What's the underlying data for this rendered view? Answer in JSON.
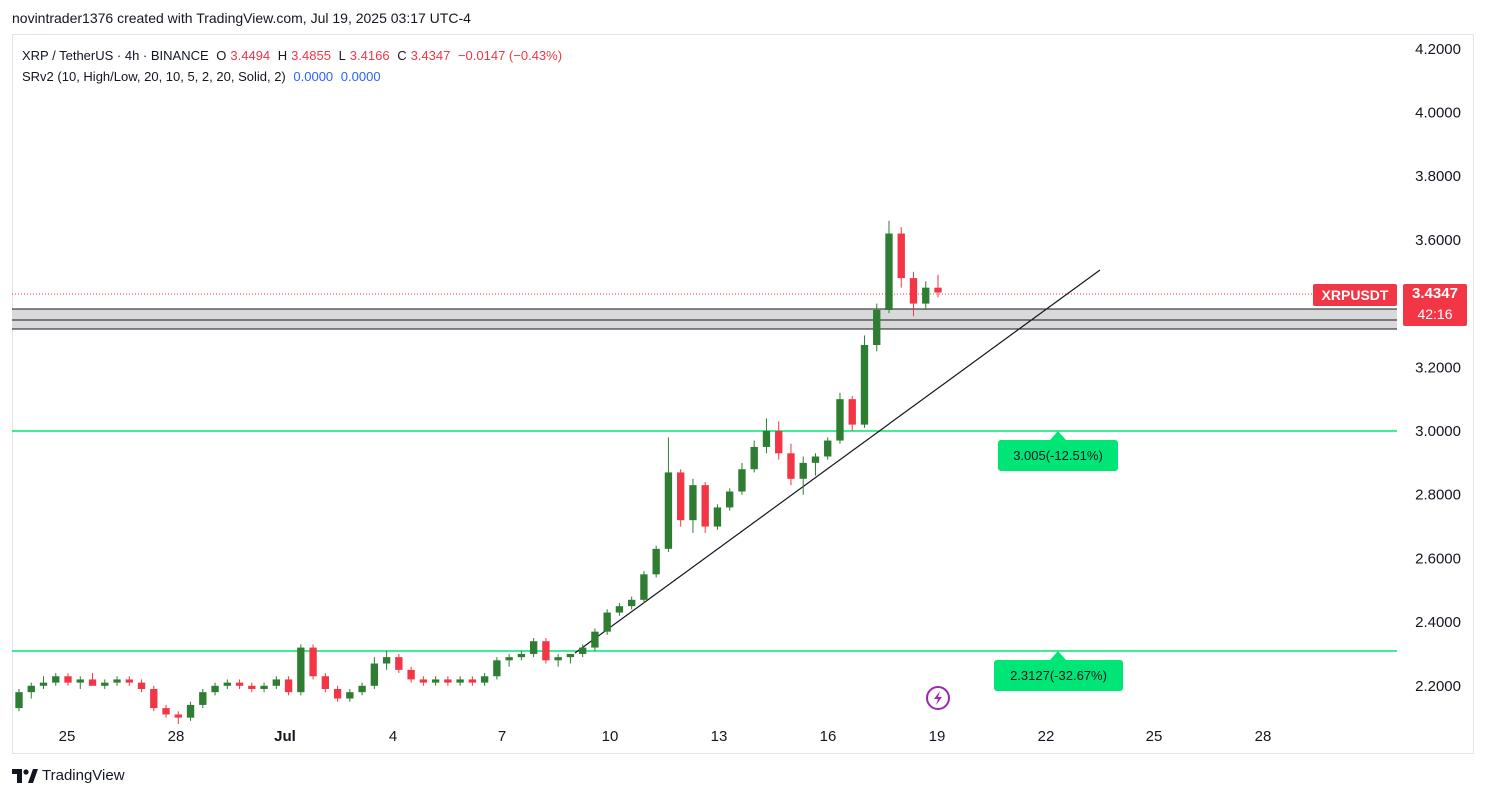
{
  "header": {
    "attribution": "novintrader1376 created with TradingView.com, Jul 19, 2025 03:17 UTC-4"
  },
  "legend": {
    "symbol": "XRP / TetherUS · 4h · BINANCE",
    "open_label": "O",
    "open": "3.4494",
    "high_label": "H",
    "high": "3.4855",
    "low_label": "L",
    "low": "3.4166",
    "close_label": "C",
    "close": "3.4347",
    "change": "−0.0147 (−0.43%)",
    "indicator": "SRv2 (10, High/Low, 20, 10, 5, 2, 20, Solid, 2)",
    "indicator_value_1": "0.0000",
    "indicator_value_2": "0.0000"
  },
  "price_badge": {
    "symbol": "XRPUSDT",
    "price": "3.4347",
    "countdown": "42:16"
  },
  "targets": [
    {
      "label": "3.005(-12.51%)",
      "price": 3.005
    },
    {
      "label": "2.3127(-32.67%)",
      "price": 2.3127
    }
  ],
  "footer": {
    "brand": "TradingView"
  },
  "colors": {
    "up": "#26a69a",
    "up_body": "#2e7d32",
    "down": "#f23645",
    "level": "#00e676",
    "target_bg": "#00e676",
    "zone": "#d9d9d9",
    "badge": "#f23645"
  },
  "chart_data": {
    "type": "candlestick",
    "y_ticks": [
      "4.2000",
      "4.0000",
      "3.8000",
      "3.6000",
      "3.2000",
      "3.0000",
      "2.8000",
      "2.6000",
      "2.4000",
      "2.2000"
    ],
    "x_ticks": [
      "25",
      "28",
      "Jul",
      "4",
      "7",
      "10",
      "13",
      "16",
      "19",
      "22",
      "25",
      "28"
    ],
    "ylim": [
      2.1,
      4.25
    ],
    "horizontal_levels": [
      3.005,
      2.3127
    ],
    "zone": [
      3.32,
      3.38
    ],
    "last_price": 3.4347,
    "trendline": {
      "from": [
        "Jul 9",
        2.3
      ],
      "to": [
        "Jul 23",
        3.52
      ]
    },
    "candles": [
      [
        2.13,
        2.19,
        2.12,
        2.18
      ],
      [
        2.18,
        2.21,
        2.16,
        2.2
      ],
      [
        2.2,
        2.23,
        2.19,
        2.21
      ],
      [
        2.21,
        2.24,
        2.2,
        2.23
      ],
      [
        2.23,
        2.24,
        2.2,
        2.21
      ],
      [
        2.21,
        2.23,
        2.19,
        2.22
      ],
      [
        2.22,
        2.24,
        2.21,
        2.2
      ],
      [
        2.2,
        2.22,
        2.19,
        2.21
      ],
      [
        2.21,
        2.23,
        2.2,
        2.22
      ],
      [
        2.22,
        2.23,
        2.2,
        2.21
      ],
      [
        2.21,
        2.22,
        2.18,
        2.19
      ],
      [
        2.19,
        2.2,
        2.12,
        2.13
      ],
      [
        2.13,
        2.14,
        2.1,
        2.11
      ],
      [
        2.11,
        2.12,
        2.08,
        2.1
      ],
      [
        2.1,
        2.15,
        2.09,
        2.14
      ],
      [
        2.14,
        2.19,
        2.13,
        2.18
      ],
      [
        2.18,
        2.21,
        2.17,
        2.2
      ],
      [
        2.2,
        2.22,
        2.19,
        2.21
      ],
      [
        2.21,
        2.22,
        2.19,
        2.2
      ],
      [
        2.2,
        2.21,
        2.18,
        2.19
      ],
      [
        2.19,
        2.21,
        2.18,
        2.2
      ],
      [
        2.2,
        2.23,
        2.19,
        2.22
      ],
      [
        2.22,
        2.23,
        2.17,
        2.18
      ],
      [
        2.18,
        2.33,
        2.17,
        2.32
      ],
      [
        2.32,
        2.33,
        2.22,
        2.23
      ],
      [
        2.23,
        2.24,
        2.18,
        2.19
      ],
      [
        2.19,
        2.2,
        2.15,
        2.16
      ],
      [
        2.16,
        2.19,
        2.15,
        2.18
      ],
      [
        2.18,
        2.21,
        2.17,
        2.2
      ],
      [
        2.2,
        2.29,
        2.19,
        2.27
      ],
      [
        2.27,
        2.31,
        2.25,
        2.29
      ],
      [
        2.29,
        2.3,
        2.24,
        2.25
      ],
      [
        2.25,
        2.26,
        2.21,
        2.22
      ],
      [
        2.22,
        2.23,
        2.2,
        2.21
      ],
      [
        2.21,
        2.23,
        2.2,
        2.22
      ],
      [
        2.22,
        2.23,
        2.2,
        2.21
      ],
      [
        2.21,
        2.23,
        2.2,
        2.22
      ],
      [
        2.22,
        2.23,
        2.2,
        2.21
      ],
      [
        2.21,
        2.24,
        2.2,
        2.23
      ],
      [
        2.23,
        2.29,
        2.22,
        2.28
      ],
      [
        2.28,
        2.3,
        2.26,
        2.29
      ],
      [
        2.29,
        2.31,
        2.28,
        2.3
      ],
      [
        2.3,
        2.35,
        2.29,
        2.34
      ],
      [
        2.34,
        2.35,
        2.27,
        2.28
      ],
      [
        2.28,
        2.3,
        2.26,
        2.29
      ],
      [
        2.29,
        2.3,
        2.27,
        2.3
      ],
      [
        2.3,
        2.33,
        2.29,
        2.32
      ],
      [
        2.32,
        2.38,
        2.31,
        2.37
      ],
      [
        2.37,
        2.44,
        2.36,
        2.43
      ],
      [
        2.43,
        2.46,
        2.42,
        2.45
      ],
      [
        2.45,
        2.48,
        2.44,
        2.47
      ],
      [
        2.47,
        2.56,
        2.46,
        2.55
      ],
      [
        2.55,
        2.64,
        2.54,
        2.63
      ],
      [
        2.63,
        2.98,
        2.62,
        2.87
      ],
      [
        2.87,
        2.88,
        2.7,
        2.72
      ],
      [
        2.72,
        2.85,
        2.68,
        2.83
      ],
      [
        2.83,
        2.84,
        2.68,
        2.7
      ],
      [
        2.7,
        2.77,
        2.69,
        2.76
      ],
      [
        2.76,
        2.82,
        2.75,
        2.81
      ],
      [
        2.81,
        2.9,
        2.8,
        2.88
      ],
      [
        2.88,
        2.97,
        2.87,
        2.95
      ],
      [
        2.95,
        3.04,
        2.93,
        3.0
      ],
      [
        3.0,
        3.03,
        2.91,
        2.93
      ],
      [
        2.93,
        2.96,
        2.83,
        2.85
      ],
      [
        2.85,
        2.92,
        2.8,
        2.9
      ],
      [
        2.9,
        2.93,
        2.86,
        2.92
      ],
      [
        2.92,
        2.98,
        2.91,
        2.97
      ],
      [
        2.97,
        3.12,
        2.96,
        3.1
      ],
      [
        3.1,
        3.11,
        3.0,
        3.02
      ],
      [
        3.02,
        3.3,
        3.01,
        3.27
      ],
      [
        3.27,
        3.4,
        3.25,
        3.38
      ],
      [
        3.38,
        3.66,
        3.37,
        3.62
      ],
      [
        3.62,
        3.64,
        3.45,
        3.48
      ],
      [
        3.48,
        3.5,
        3.36,
        3.4
      ],
      [
        3.4,
        3.47,
        3.38,
        3.45
      ],
      [
        3.45,
        3.49,
        3.42,
        3.4347
      ]
    ]
  }
}
